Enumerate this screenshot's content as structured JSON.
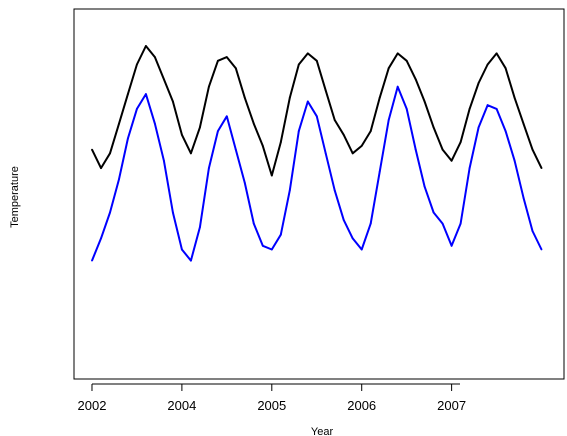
{
  "chart_data": {
    "type": "line",
    "title": "",
    "xlabel": "Year",
    "ylabel": "Temperature",
    "x_ticks": [
      {
        "value": 0,
        "label": "2002"
      },
      {
        "value": 2,
        "label": "2004"
      },
      {
        "value": 4,
        "label": "2005"
      },
      {
        "value": 6,
        "label": "2006"
      },
      {
        "value": 8,
        "label": "2007"
      }
    ],
    "xlim": [
      -0.4,
      10.5
    ],
    "ylim": [
      0,
      100
    ],
    "grid": false,
    "legend": "none",
    "series": [
      {
        "color": "#000000",
        "x": [
          0.0,
          0.2,
          0.4,
          0.6,
          0.8,
          1.0,
          1.2,
          1.4,
          1.6,
          1.8,
          2.0,
          2.2,
          2.4,
          2.6,
          2.8,
          3.0,
          3.2,
          3.4,
          3.6,
          3.8,
          4.0,
          4.2,
          4.4,
          4.6,
          4.8,
          5.0,
          5.2,
          5.4,
          5.6,
          5.8,
          6.0,
          6.2,
          6.4,
          6.6,
          6.8,
          7.0,
          7.2,
          7.4,
          7.6,
          7.8,
          8.0,
          8.2,
          8.4,
          8.6,
          8.8,
          9.0,
          9.2,
          9.4,
          9.6,
          9.8,
          10.0
        ],
        "values": [
          62,
          57,
          61,
          69,
          77,
          85,
          90,
          87,
          81,
          75,
          66,
          61,
          68,
          79,
          86,
          87,
          84,
          76,
          69,
          63,
          55,
          64,
          76,
          85,
          88,
          86,
          78,
          70,
          66,
          61,
          63,
          67,
          76,
          84,
          88,
          86,
          81,
          75,
          68,
          62,
          59,
          64,
          73,
          80,
          85,
          88,
          84,
          76,
          69,
          62,
          57
        ]
      },
      {
        "color": "#0000ff",
        "x": [
          0.0,
          0.2,
          0.4,
          0.6,
          0.8,
          1.0,
          1.2,
          1.4,
          1.6,
          1.8,
          2.0,
          2.2,
          2.4,
          2.6,
          2.8,
          3.0,
          3.2,
          3.4,
          3.6,
          3.8,
          4.0,
          4.2,
          4.4,
          4.6,
          4.8,
          5.0,
          5.2,
          5.4,
          5.6,
          5.8,
          6.0,
          6.2,
          6.4,
          6.6,
          6.8,
          7.0,
          7.2,
          7.4,
          7.6,
          7.8,
          8.0,
          8.2,
          8.4,
          8.6,
          8.8,
          9.0,
          9.2,
          9.4,
          9.6,
          9.8,
          10.0
        ],
        "values": [
          32,
          38,
          45,
          54,
          65,
          73,
          77,
          69,
          59,
          45,
          35,
          32,
          41,
          57,
          67,
          71,
          62,
          53,
          42,
          36,
          35,
          39,
          51,
          67,
          75,
          71,
          61,
          51,
          43,
          38,
          35,
          42,
          56,
          70,
          79,
          73,
          62,
          52,
          45,
          42,
          36,
          42,
          57,
          68,
          74,
          73,
          67,
          59,
          49,
          40,
          35
        ]
      }
    ]
  }
}
